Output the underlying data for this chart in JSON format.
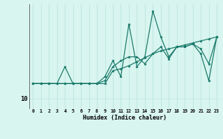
{
  "xlabel": "Humidex (Indice chaleur)",
  "background_color": "#d9f5f0",
  "line_color": "#1a7a6a",
  "grid_color": "#c0e8e0",
  "xlim": [
    -0.5,
    23.5
  ],
  "ylim": [
    9.0,
    19.5
  ],
  "ytick_values": [
    10
  ],
  "xtick_values": [
    0,
    1,
    2,
    3,
    4,
    5,
    6,
    7,
    8,
    9,
    10,
    11,
    12,
    13,
    14,
    15,
    16,
    17,
    18,
    19,
    20,
    21,
    22,
    23
  ],
  "series1_x": [
    0,
    1,
    2,
    3,
    4,
    5,
    6,
    7,
    8,
    9,
    10,
    11,
    12,
    13,
    14,
    15,
    16,
    17,
    18,
    19,
    20,
    21,
    22,
    23
  ],
  "series1_y": [
    11.5,
    11.5,
    11.5,
    11.5,
    11.5,
    11.5,
    11.5,
    11.5,
    11.5,
    11.5,
    12.8,
    13.0,
    13.3,
    13.7,
    14.1,
    14.5,
    14.8,
    15.0,
    15.2,
    15.4,
    15.6,
    15.8,
    16.0,
    16.2
  ],
  "series2_x": [
    0,
    1,
    2,
    3,
    4,
    5,
    6,
    7,
    8,
    9,
    10,
    11,
    12,
    13,
    14,
    15,
    16,
    17,
    18,
    19,
    20,
    21,
    22,
    23
  ],
  "series2_y": [
    11.5,
    11.5,
    11.5,
    11.5,
    13.2,
    11.5,
    11.5,
    11.5,
    11.5,
    12.2,
    13.8,
    12.2,
    17.5,
    13.2,
    14.2,
    18.8,
    16.2,
    14.2,
    15.2,
    15.2,
    15.5,
    14.5,
    11.8,
    16.2
  ],
  "series3_x": [
    0,
    1,
    2,
    3,
    4,
    5,
    6,
    7,
    8,
    9,
    10,
    11,
    12,
    13,
    14,
    15,
    16,
    17,
    18,
    19,
    20,
    21,
    22,
    23
  ],
  "series3_y": [
    11.5,
    11.5,
    11.5,
    11.5,
    11.5,
    11.5,
    11.5,
    11.5,
    11.5,
    11.8,
    13.2,
    13.8,
    14.2,
    14.2,
    13.5,
    14.5,
    15.2,
    14.0,
    15.2,
    15.2,
    15.5,
    15.0,
    13.5,
    16.2
  ]
}
